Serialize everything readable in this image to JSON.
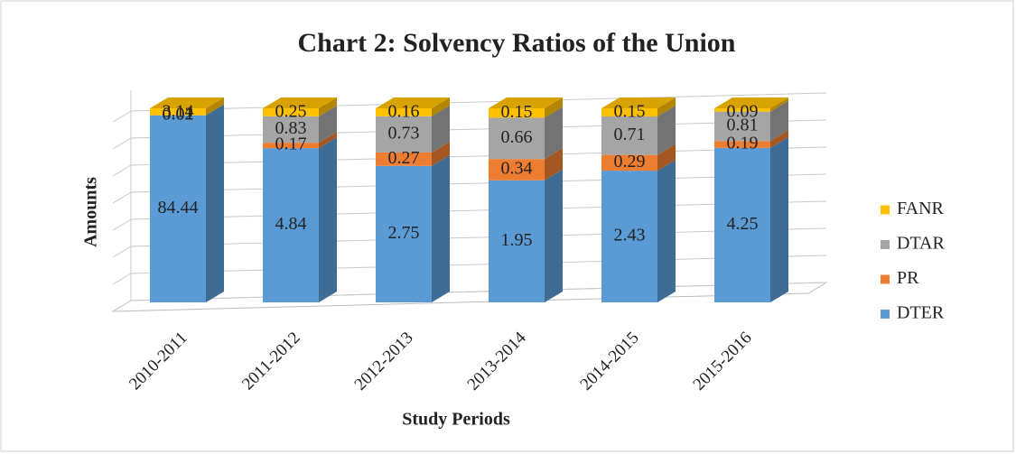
{
  "chart_data": {
    "type": "bar",
    "stacking": "percent",
    "title": "Chart 2: Solvency Ratios of the Union",
    "x_label": "Study Periods",
    "y_label": "Amounts",
    "categories": [
      "2010-2011",
      "2011-2012",
      "2012-2013",
      "2013-2014",
      "2014-2015",
      "2015-2016"
    ],
    "series": [
      {
        "name": "DTER",
        "color": "#5b9bd5",
        "values": [
          84.44,
          4.84,
          2.75,
          1.95,
          2.43,
          4.25
        ]
      },
      {
        "name": "PR",
        "color": "#ed7d31",
        "values": [
          0.01,
          0.17,
          0.27,
          0.34,
          0.29,
          0.19
        ]
      },
      {
        "name": "DTAR",
        "color": "#a5a5a5",
        "values": [
          0.02,
          0.83,
          0.73,
          0.66,
          0.71,
          0.81
        ]
      },
      {
        "name": "FANR",
        "color": "#ffc000",
        "values": [
          3.14,
          0.25,
          0.16,
          0.15,
          0.15,
          0.09
        ]
      }
    ],
    "legend": "right"
  }
}
